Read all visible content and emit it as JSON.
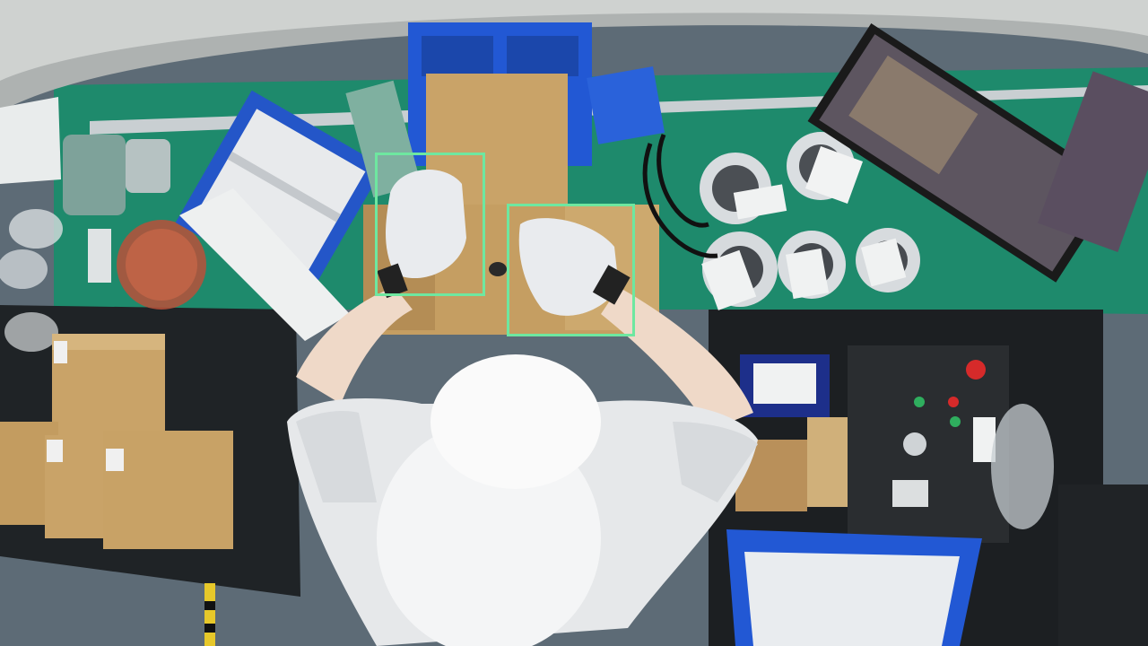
{
  "scene": {
    "type": "overhead fisheye camera view of packing workstation",
    "colors": {
      "bench": "#1e8a6c",
      "box": "#c9a368",
      "bin": "#2456c8",
      "detection_box": "#6ee7a0",
      "floor": "#5d6b76"
    }
  },
  "detections": [
    {
      "label": "",
      "name": "left-hand"
    },
    {
      "label": "",
      "name": "right-hand"
    }
  ]
}
